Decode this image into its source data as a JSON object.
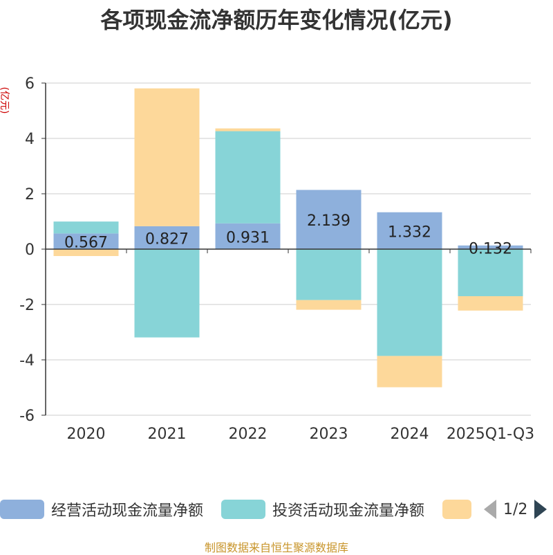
{
  "title": "各项现金流净额历年变化情况(亿元)",
  "source": "制图数据来自恒生聚源数据库",
  "pager": {
    "text": "1/2"
  },
  "chart_data": {
    "type": "bar",
    "stacked": true,
    "unit_label": "(亿元)",
    "categories": [
      "2020",
      "2021",
      "2022",
      "2023",
      "2024",
      "2025Q1-Q3"
    ],
    "ylim": [
      -6,
      6
    ],
    "yticks": [
      -6,
      -4,
      -2,
      0,
      2,
      4,
      6
    ],
    "grid": true,
    "legend_position": "bottom",
    "series": [
      {
        "name": "经营活动现金流量净额",
        "color": "#8eb0dc",
        "values": [
          0.567,
          0.827,
          0.931,
          2.139,
          1.332,
          0.132
        ],
        "labels": [
          "0.567",
          "0.827",
          "0.931",
          "2.139",
          "1.332",
          "0.132"
        ]
      },
      {
        "name": "投资活动现金流量净额",
        "color": "#87d4d7",
        "values": [
          0.43,
          -3.19,
          3.33,
          -1.84,
          -3.86,
          -1.7
        ]
      },
      {
        "name": "",
        "color": "#fdd89a",
        "values": [
          -0.25,
          4.98,
          0.1,
          -0.35,
          -1.13,
          -0.52
        ]
      }
    ]
  }
}
